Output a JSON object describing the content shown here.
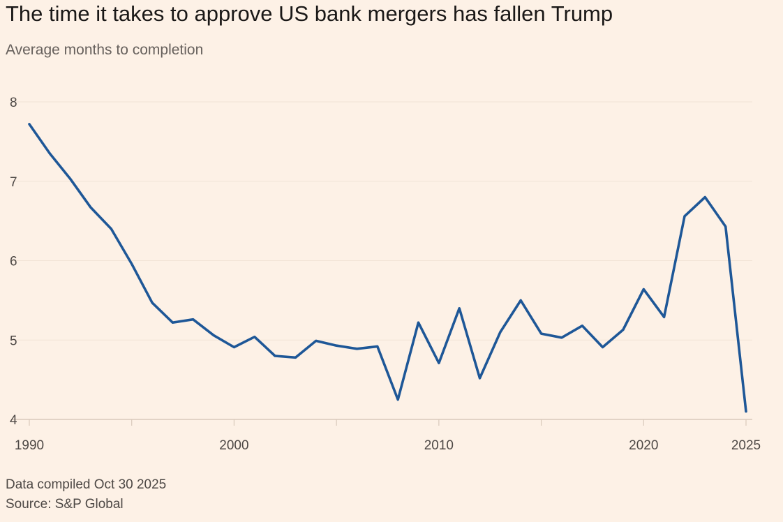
{
  "header": {
    "title": "The time it takes to approve US bank mergers has fallen Trump",
    "subtitle": "Average months to completion"
  },
  "footer": {
    "compiled": "Data compiled Oct 30 2025",
    "source": "Source: S&P Global"
  },
  "colors": {
    "line": "#1e5797",
    "grid": "#f1e3d6",
    "background": "#fdf1e6"
  },
  "chart_data": {
    "type": "line",
    "title": "The time it takes to approve US bank mergers has fallen Trump",
    "subtitle": "Average months to completion",
    "xlabel": "",
    "ylabel": "Average months to completion",
    "xlim": [
      1990,
      2025
    ],
    "ylim": [
      4,
      8
    ],
    "yticks": [
      4,
      5,
      6,
      7,
      8
    ],
    "xtick_labels": [
      {
        "value": 1990,
        "label": "1990"
      },
      {
        "value": 2000,
        "label": "2000"
      },
      {
        "value": 2010,
        "label": "2010"
      },
      {
        "value": 2020,
        "label": "2020"
      },
      {
        "value": 2025,
        "label": "2025"
      }
    ],
    "grid": true,
    "series": [
      {
        "name": "Average months to completion",
        "x": [
          1990,
          1991,
          1992,
          1993,
          1994,
          1995,
          1996,
          1997,
          1998,
          1999,
          2000,
          2001,
          2002,
          2003,
          2004,
          2005,
          2006,
          2007,
          2008,
          2009,
          2010,
          2011,
          2012,
          2013,
          2014,
          2015,
          2016,
          2017,
          2018,
          2019,
          2020,
          2021,
          2022,
          2023,
          2024,
          2025
        ],
        "values": [
          7.72,
          7.35,
          7.03,
          6.67,
          6.4,
          5.96,
          5.47,
          5.22,
          5.26,
          5.06,
          4.91,
          5.04,
          4.8,
          4.78,
          4.99,
          4.93,
          4.89,
          4.92,
          4.25,
          5.22,
          4.71,
          5.4,
          4.52,
          5.1,
          5.5,
          5.08,
          5.03,
          5.18,
          4.91,
          5.13,
          5.64,
          5.29,
          6.56,
          6.8,
          6.43,
          4.1
        ]
      }
    ]
  }
}
